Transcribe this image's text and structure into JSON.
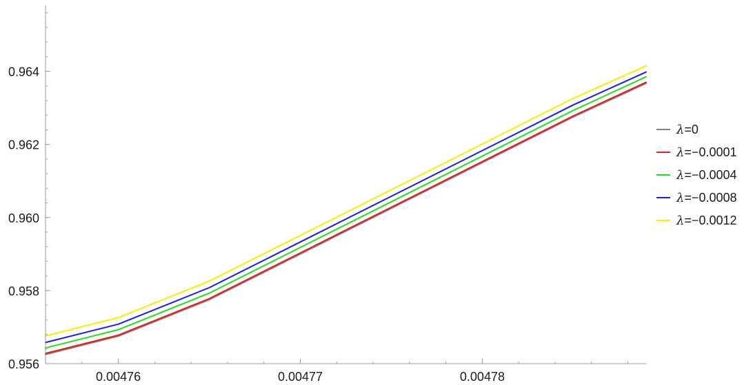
{
  "chart_data": {
    "type": "line",
    "title": "",
    "xlabel": "",
    "ylabel": "",
    "xlim": [
      0.004756,
      0.004789
    ],
    "ylim": [
      0.956,
      0.9658
    ],
    "x_ticks": [
      {
        "value": 0.00476,
        "label": "0.00476"
      },
      {
        "value": 0.00477,
        "label": "0.00477"
      },
      {
        "value": 0.00478,
        "label": "0.00478"
      }
    ],
    "y_ticks": [
      {
        "value": 0.956,
        "label": "0.956"
      },
      {
        "value": 0.958,
        "label": "0.958"
      },
      {
        "value": 0.96,
        "label": "0.960"
      },
      {
        "value": 0.962,
        "label": "0.962"
      },
      {
        "value": 0.964,
        "label": "0.964"
      }
    ],
    "grid": false,
    "legend_position": "right",
    "series": [
      {
        "name": "λ=0",
        "lambda_symbol": "λ",
        "lambda_value": "=0",
        "color": "#808080",
        "x": [
          0.004756,
          0.00476,
          0.004765,
          0.00477,
          0.004775,
          0.00478,
          0.004785,
          0.004789
        ],
        "y": [
          0.95625,
          0.95675,
          0.95775,
          0.959,
          0.96025,
          0.9615,
          0.96275,
          0.96367
        ]
      },
      {
        "name": "λ=-0.0001",
        "lambda_symbol": "λ",
        "lambda_value": "=−0.0001",
        "color": "#e02020",
        "x": [
          0.004756,
          0.00476,
          0.004765,
          0.00477,
          0.004775,
          0.00478,
          0.004785,
          0.004789
        ],
        "y": [
          0.95628,
          0.95678,
          0.95778,
          0.95903,
          0.96028,
          0.96153,
          0.96278,
          0.9637
        ]
      },
      {
        "name": "λ=-0.0004",
        "lambda_symbol": "λ",
        "lambda_value": "=−0.0004",
        "color": "#22dd22",
        "x": [
          0.004756,
          0.00476,
          0.004765,
          0.00477,
          0.004775,
          0.00478,
          0.004785,
          0.004789
        ],
        "y": [
          0.95643,
          0.95693,
          0.95793,
          0.95918,
          0.96043,
          0.96168,
          0.96293,
          0.96385
        ]
      },
      {
        "name": "λ=-0.0008",
        "lambda_symbol": "λ",
        "lambda_value": "=−0.0008",
        "color": "#1a1ae6",
        "x": [
          0.004756,
          0.00476,
          0.004765,
          0.00477,
          0.004775,
          0.00478,
          0.004785,
          0.004789
        ],
        "y": [
          0.95658,
          0.95708,
          0.95808,
          0.95933,
          0.96058,
          0.96183,
          0.96308,
          0.96398
        ]
      },
      {
        "name": "λ=-0.0012",
        "lambda_symbol": "λ",
        "lambda_value": "=−0.0012",
        "color": "#f2f200",
        "x": [
          0.004756,
          0.00476,
          0.004765,
          0.00477,
          0.004775,
          0.00478,
          0.004785,
          0.004789
        ],
        "y": [
          0.95676,
          0.95726,
          0.95826,
          0.95951,
          0.96076,
          0.96201,
          0.96326,
          0.96415
        ]
      }
    ]
  }
}
